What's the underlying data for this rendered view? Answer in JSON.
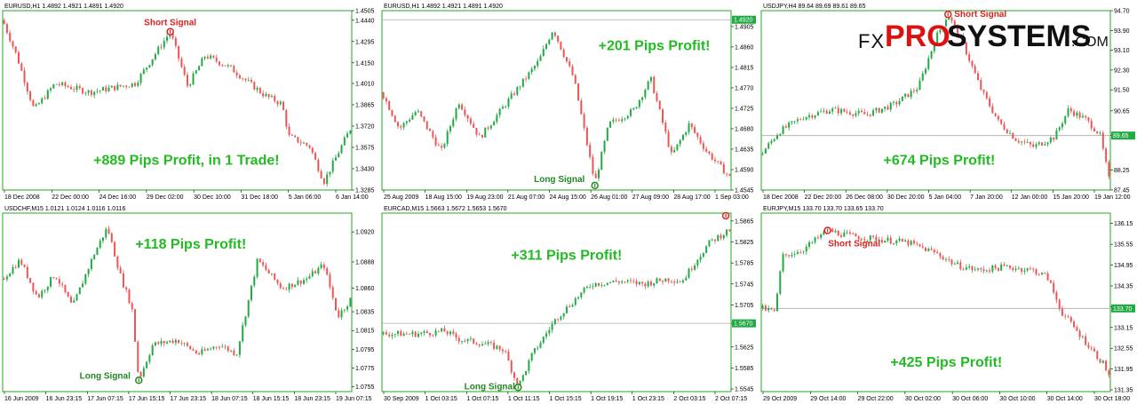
{
  "logo": {
    "fx": "FX",
    "pro": "PRO",
    "systems": "SYSTEMS",
    "com": ".COM"
  },
  "colors": {
    "frame": "#22aa22",
    "bull": "#22aa44",
    "bear": "#ee5555",
    "profit": "#22bb22",
    "short": "#dd2222",
    "long": "#228822"
  },
  "chart_data": [
    {
      "type": "candlestick",
      "header": "EURUSD,H1  1.4892 1.4921 1.4891 1.4920",
      "yticks": [
        "1.4505",
        "1.4440",
        "1.4295",
        "1.4150",
        "1.4010",
        "1.3865",
        "1.3720",
        "1.3575",
        "1.3430",
        "1.3285"
      ],
      "ylim": [
        1.3285,
        1.4505
      ],
      "xticks": [
        "18 Dec 2008",
        "22 Dec 00:00",
        "24 Dec 16:00",
        "29 Dec 02:00",
        "30 Dec 10:00",
        "31 Dec 18:00",
        "5 Jan 06:00",
        "6 Jan 14:00"
      ],
      "profit": "+889 Pips Profit, in 1 Trade!",
      "signals": [
        {
          "label": "Short Signal",
          "kind": "short",
          "x": 0.48,
          "value": 1.4362
        }
      ],
      "current": null,
      "hline": null,
      "path": [
        [
          0,
          1.444
        ],
        [
          0.04,
          1.42
        ],
        [
          0.09,
          1.383
        ],
        [
          0.15,
          1.401
        ],
        [
          0.25,
          1.395
        ],
        [
          0.38,
          1.401
        ],
        [
          0.48,
          1.4362
        ],
        [
          0.53,
          1.399
        ],
        [
          0.58,
          1.42
        ],
        [
          0.65,
          1.412
        ],
        [
          0.75,
          1.393
        ],
        [
          0.8,
          1.387
        ],
        [
          0.82,
          1.365
        ],
        [
          0.88,
          1.358
        ],
        [
          0.92,
          1.334
        ],
        [
          0.97,
          1.358
        ],
        [
          1.0,
          1.372
        ]
      ]
    },
    {
      "type": "candlestick",
      "header": "EURUSD,H1  1.4892 1.4921 1.4891 1.4920",
      "yticks": [
        "1.4905",
        "1.4860",
        "1.4815",
        "1.4770",
        "1.4725",
        "1.4680",
        "1.4635",
        "1.4590",
        "1.4545"
      ],
      "ylim": [
        1.4545,
        1.494
      ],
      "xticks": [
        "25 Aug 2009",
        "18 Aug 15:00",
        "19 Aug 23:00",
        "21 Aug 07:00",
        "24 Aug 15:00",
        "26 Aug 01:00",
        "27 Aug 09:00",
        "28 Aug 17:00",
        "1 Sep 03:00"
      ],
      "profit": "+201 Pips Profit!",
      "signals": [
        {
          "label": "Long Signal",
          "kind": "long",
          "x": 0.61,
          "value": 1.4555
        }
      ],
      "current": "1.4920",
      "hline": 1.492,
      "path": [
        [
          0,
          1.476
        ],
        [
          0.05,
          1.468
        ],
        [
          0.1,
          1.472
        ],
        [
          0.17,
          1.463
        ],
        [
          0.22,
          1.474
        ],
        [
          0.28,
          1.466
        ],
        [
          0.34,
          1.472
        ],
        [
          0.4,
          1.478
        ],
        [
          0.45,
          1.483
        ],
        [
          0.49,
          1.49
        ],
        [
          0.55,
          1.479
        ],
        [
          0.61,
          1.456
        ],
        [
          0.65,
          1.469
        ],
        [
          0.72,
          1.472
        ],
        [
          0.77,
          1.479
        ],
        [
          0.83,
          1.462
        ],
        [
          0.88,
          1.469
        ],
        [
          0.93,
          1.463
        ],
        [
          1.0,
          1.457
        ]
      ]
    },
    {
      "type": "candlestick",
      "header": "USDJPY,H4  89.64 89.69 89.61 89.65",
      "yticks": [
        "94.70",
        "93.90",
        "93.10",
        "92.30",
        "91.50",
        "90.65",
        "89.65",
        "88.25",
        "87.45"
      ],
      "ylim": [
        87.45,
        94.7
      ],
      "xticks": [
        "18 Dec 2008",
        "22 Dec 20:00",
        "26 Dec 08:00",
        "30 Dec 20:00",
        "5 Jan 04:00",
        "7 Jan 20:00",
        "12 Jan 00:00",
        "15 Jan 20:00",
        "19 Jan 12:00"
      ],
      "profit": "+674 Pips Profit!",
      "signals": [
        {
          "label": "Short Signal",
          "kind": "short",
          "x": 0.535,
          "value": 94.55
        }
      ],
      "current": "89.65",
      "hline": 89.65,
      "path": [
        [
          0,
          88.9
        ],
        [
          0.05,
          89.8
        ],
        [
          0.12,
          90.4
        ],
        [
          0.2,
          90.7
        ],
        [
          0.3,
          90.5
        ],
        [
          0.38,
          90.9
        ],
        [
          0.45,
          91.6
        ],
        [
          0.5,
          93.6
        ],
        [
          0.535,
          94.55
        ],
        [
          0.58,
          93.3
        ],
        [
          0.63,
          91.5
        ],
        [
          0.68,
          90.2
        ],
        [
          0.73,
          89.5
        ],
        [
          0.78,
          89.2
        ],
        [
          0.84,
          89.6
        ],
        [
          0.88,
          90.7
        ],
        [
          0.93,
          90.3
        ],
        [
          0.97,
          89.7
        ],
        [
          1.0,
          87.6
        ]
      ]
    },
    {
      "type": "candlestick",
      "header": "USDCHF,M15  1.0121 1.0124 1.0116 1.0116",
      "yticks": [
        "1.0920",
        "1.0888",
        "1.0860",
        "1.0835",
        "1.0815",
        "1.0795",
        "1.0775",
        "1.0755"
      ],
      "ylim": [
        1.075,
        1.094
      ],
      "xticks": [
        "16 Jun 2009",
        "16 Jun 23:15",
        "17 Jun 07:15",
        "17 Jun 15:15",
        "17 Jun 23:15",
        "18 Jun 07:15",
        "18 Jun 15:15",
        "18 Jun 23:15",
        "19 Jun 07:15"
      ],
      "profit": "+118 Pips Profit!",
      "signals": [
        {
          "label": "Long Signal",
          "kind": "long",
          "x": 0.39,
          "value": 1.0762
        }
      ],
      "current": null,
      "hline": null,
      "path": [
        [
          0,
          1.087
        ],
        [
          0.05,
          1.089
        ],
        [
          0.1,
          1.085
        ],
        [
          0.15,
          1.0875
        ],
        [
          0.2,
          1.084
        ],
        [
          0.26,
          1.0895
        ],
        [
          0.3,
          1.0925
        ],
        [
          0.34,
          1.087
        ],
        [
          0.37,
          1.084
        ],
        [
          0.39,
          1.0762
        ],
        [
          0.43,
          1.08
        ],
        [
          0.5,
          1.0805
        ],
        [
          0.56,
          1.079
        ],
        [
          0.62,
          1.08
        ],
        [
          0.67,
          1.079
        ],
        [
          0.73,
          1.089
        ],
        [
          0.8,
          1.086
        ],
        [
          0.87,
          1.087
        ],
        [
          0.92,
          1.0885
        ],
        [
          0.96,
          1.083
        ],
        [
          1.0,
          1.085
        ]
      ]
    },
    {
      "type": "candlestick",
      "header": "EURCAD,M15  1.5663 1.5672 1.5653 1.5670",
      "yticks": [
        "1.5865",
        "1.5825",
        "1.5785",
        "1.5745",
        "1.5705",
        "1.5670",
        "1.5625",
        "1.5585",
        "1.5545"
      ],
      "ylim": [
        1.554,
        1.588
      ],
      "xticks": [
        "30 Sep 2009",
        "1 Oct 03:15",
        "1 Oct 07:15",
        "1 Oct 11:15",
        "1 Oct 15:15",
        "1 Oct 19:15",
        "1 Oct 23:15",
        "2 Oct 03:15",
        "2 Oct 07:15"
      ],
      "profit": "+311 Pips Profit!",
      "signals": [
        {
          "label": "Long Signal",
          "kind": "long",
          "x": 0.39,
          "value": 1.5548
        },
        {
          "label": "",
          "kind": "short",
          "x": 0.985,
          "value": 1.5875
        }
      ],
      "current": "1.5670",
      "hline": 1.567,
      "path": [
        [
          0,
          1.565
        ],
        [
          0.1,
          1.565
        ],
        [
          0.18,
          1.5655
        ],
        [
          0.22,
          1.564
        ],
        [
          0.3,
          1.563
        ],
        [
          0.35,
          1.562
        ],
        [
          0.39,
          1.5548
        ],
        [
          0.43,
          1.561
        ],
        [
          0.5,
          1.568
        ],
        [
          0.56,
          1.572
        ],
        [
          0.6,
          1.5745
        ],
        [
          0.68,
          1.575
        ],
        [
          0.75,
          1.5745
        ],
        [
          0.82,
          1.5755
        ],
        [
          0.86,
          1.575
        ],
        [
          0.9,
          1.579
        ],
        [
          0.94,
          1.5825
        ],
        [
          1.0,
          1.585
        ]
      ]
    },
    {
      "type": "candlestick",
      "header": "EURJPY,M15  133.70 133.70 133.65 133.70",
      "yticks": [
        "136.15",
        "135.55",
        "134.95",
        "134.35",
        "133.75",
        "133.15",
        "132.55",
        "131.95",
        "131.35"
      ],
      "ylim": [
        131.3,
        136.45
      ],
      "xticks": [
        "29 Oct 2009",
        "29 Oct 14:00",
        "29 Oct 22:00",
        "30 Oct 02:00",
        "30 Oct 06:00",
        "30 Oct 10:00",
        "30 Oct 14:00",
        "30 Oct 18:00"
      ],
      "profit": "+425 Pips Profit!",
      "signals": [
        {
          "label": "Short Signal",
          "kind": "short",
          "x": 0.19,
          "value": 135.95
        }
      ],
      "current": "133.70",
      "hline": 133.7,
      "path": [
        [
          0,
          133.7
        ],
        [
          0.04,
          133.6
        ],
        [
          0.06,
          135.2
        ],
        [
          0.12,
          135.4
        ],
        [
          0.19,
          135.95
        ],
        [
          0.25,
          135.8
        ],
        [
          0.33,
          135.7
        ],
        [
          0.42,
          135.6
        ],
        [
          0.5,
          135.3
        ],
        [
          0.56,
          134.95
        ],
        [
          0.62,
          134.8
        ],
        [
          0.7,
          134.9
        ],
        [
          0.78,
          134.8
        ],
        [
          0.82,
          134.6
        ],
        [
          0.86,
          133.6
        ],
        [
          0.9,
          133.1
        ],
        [
          0.94,
          132.6
        ],
        [
          0.98,
          132.1
        ],
        [
          1.0,
          131.7
        ]
      ]
    }
  ]
}
